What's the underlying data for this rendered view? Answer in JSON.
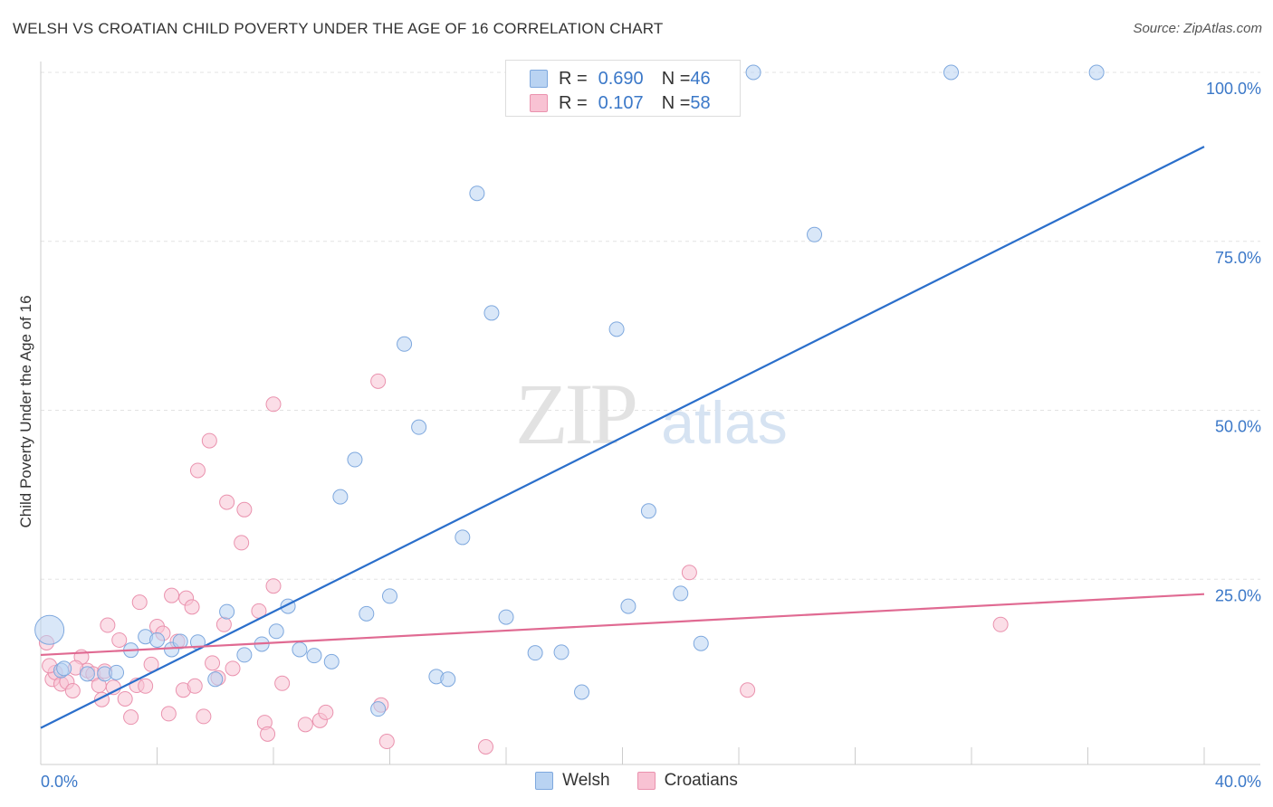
{
  "title": "WELSH VS CROATIAN CHILD POVERTY UNDER THE AGE OF 16 CORRELATION CHART",
  "source": "Source: ZipAtlas.com",
  "watermark": {
    "zip": "ZIP",
    "atlas": "atlas"
  },
  "legend": {
    "welsh": {
      "r_key": "R = ",
      "r_value": "0.690",
      "n_key": "N = ",
      "n_value": "46"
    },
    "croatians": {
      "r_key": "R = ",
      "r_value": "0.107",
      "n_key": "N = ",
      "n_value": "58"
    }
  },
  "bottom_legend": {
    "welsh": "Welsh",
    "croatians": "Croatians"
  },
  "chart_data": {
    "type": "scatter",
    "xlabel": "",
    "ylabel": "Child Poverty Under the Age of 16",
    "xlim": [
      0,
      40
    ],
    "ylim": [
      0,
      100
    ],
    "x_tick_labels": {
      "left": "0.0%",
      "right": "40.0%"
    },
    "y_ticks": [
      25,
      50,
      75,
      100
    ],
    "y_tick_labels": [
      "25.0%",
      "50.0%",
      "75.0%",
      "100.0%"
    ],
    "grid": true,
    "colors": {
      "welsh_fill": "#b9d3f2",
      "welsh_stroke": "#7ea8de",
      "welsh_line": "#2b6fcb",
      "croatians_fill": "#f8c2d3",
      "croatians_stroke": "#ea92ae",
      "croatians_line": "#e06a92",
      "tick_label": "#3b78c8"
    },
    "series": [
      {
        "name": "Welsh",
        "points": [
          [
            0.3,
            17.5,
            2
          ],
          [
            0.7,
            11.5,
            1
          ],
          [
            1.6,
            11.0,
            1
          ],
          [
            2.2,
            11.0,
            1
          ],
          [
            2.6,
            11.2,
            1
          ],
          [
            3.1,
            14.5,
            1
          ],
          [
            3.6,
            16.5,
            1
          ],
          [
            4.0,
            16.0,
            1
          ],
          [
            4.5,
            14.6,
            1
          ],
          [
            4.8,
            15.8,
            1
          ],
          [
            5.4,
            15.7,
            1
          ],
          [
            6.0,
            10.2,
            1
          ],
          [
            6.4,
            20.2,
            1
          ],
          [
            7.0,
            13.8,
            1
          ],
          [
            7.6,
            15.4,
            1
          ],
          [
            8.1,
            17.3,
            1
          ],
          [
            8.5,
            21.0,
            1
          ],
          [
            8.9,
            14.6,
            1
          ],
          [
            9.4,
            13.7,
            1
          ],
          [
            10.0,
            12.8,
            1
          ],
          [
            10.3,
            37.2,
            1
          ],
          [
            10.8,
            42.7,
            1
          ],
          [
            11.2,
            19.9,
            1
          ],
          [
            11.6,
            5.8,
            1
          ],
          [
            12.0,
            22.5,
            1
          ],
          [
            12.5,
            59.8,
            1
          ],
          [
            13.0,
            47.5,
            1
          ],
          [
            13.6,
            10.6,
            1
          ],
          [
            14.0,
            10.2,
            1
          ],
          [
            14.5,
            31.2,
            1
          ],
          [
            15.0,
            82.1,
            1
          ],
          [
            15.5,
            64.4,
            1
          ],
          [
            16.0,
            19.4,
            1
          ],
          [
            17.0,
            14.1,
            1
          ],
          [
            17.9,
            14.2,
            1
          ],
          [
            18.6,
            8.3,
            1
          ],
          [
            19.8,
            62.0,
            1
          ],
          [
            20.2,
            21.0,
            1
          ],
          [
            20.9,
            35.1,
            1
          ],
          [
            22.0,
            22.9,
            1
          ],
          [
            22.7,
            15.5,
            1
          ],
          [
            24.5,
            100.0,
            1
          ],
          [
            26.6,
            76.0,
            1
          ],
          [
            31.3,
            100.0,
            1
          ],
          [
            36.3,
            100.0,
            1
          ],
          [
            0.8,
            11.8,
            1
          ]
        ]
      },
      {
        "name": "Croatians",
        "points": [
          [
            0.2,
            15.6,
            1
          ],
          [
            0.4,
            10.2,
            1
          ],
          [
            0.5,
            11.2,
            1
          ],
          [
            0.7,
            9.5,
            1
          ],
          [
            0.9,
            9.8,
            1
          ],
          [
            1.1,
            8.5,
            1
          ],
          [
            1.4,
            13.5,
            1
          ],
          [
            1.6,
            11.5,
            1
          ],
          [
            1.8,
            11.0,
            1
          ],
          [
            2.0,
            9.3,
            1
          ],
          [
            2.1,
            7.2,
            1
          ],
          [
            2.3,
            18.2,
            1
          ],
          [
            2.5,
            9.0,
            1
          ],
          [
            2.7,
            16.0,
            1
          ],
          [
            2.9,
            7.3,
            1
          ],
          [
            3.1,
            4.6,
            1
          ],
          [
            3.3,
            9.3,
            1
          ],
          [
            3.4,
            21.6,
            1
          ],
          [
            3.6,
            9.2,
            1
          ],
          [
            3.8,
            12.4,
            1
          ],
          [
            4.0,
            18.0,
            1
          ],
          [
            4.2,
            17.0,
            1
          ],
          [
            4.4,
            5.1,
            1
          ],
          [
            4.5,
            22.6,
            1
          ],
          [
            4.7,
            15.8,
            1
          ],
          [
            4.9,
            8.6,
            1
          ],
          [
            5.0,
            22.2,
            1
          ],
          [
            5.2,
            20.9,
            1
          ],
          [
            5.3,
            9.2,
            1
          ],
          [
            5.4,
            41.1,
            1
          ],
          [
            5.6,
            4.7,
            1
          ],
          [
            5.8,
            45.5,
            1
          ],
          [
            5.9,
            12.6,
            1
          ],
          [
            6.1,
            10.4,
            1
          ],
          [
            6.3,
            18.3,
            1
          ],
          [
            6.4,
            36.4,
            1
          ],
          [
            6.6,
            11.8,
            1
          ],
          [
            6.9,
            30.4,
            1
          ],
          [
            7.0,
            35.3,
            1
          ],
          [
            7.5,
            20.3,
            1
          ],
          [
            7.7,
            3.8,
            1
          ],
          [
            7.8,
            2.1,
            1
          ],
          [
            8.0,
            50.9,
            1
          ],
          [
            8.0,
            24.0,
            1
          ],
          [
            8.3,
            9.6,
            1
          ],
          [
            9.1,
            3.5,
            1
          ],
          [
            9.6,
            4.1,
            1
          ],
          [
            9.8,
            5.3,
            1
          ],
          [
            11.6,
            54.3,
            1
          ],
          [
            11.7,
            6.4,
            1
          ],
          [
            11.9,
            1.0,
            1
          ],
          [
            15.3,
            0.2,
            1
          ],
          [
            22.3,
            26.0,
            1
          ],
          [
            24.3,
            8.6,
            1
          ],
          [
            33.0,
            18.3,
            1
          ],
          [
            1.2,
            11.9,
            1
          ],
          [
            0.3,
            12.2,
            1
          ],
          [
            2.2,
            11.4,
            1
          ]
        ]
      }
    ],
    "trend_lines": [
      {
        "series": "Welsh",
        "x": [
          0,
          40
        ],
        "y": [
          3.0,
          89.0
        ]
      },
      {
        "series": "Croatians",
        "x": [
          0,
          40
        ],
        "y": [
          13.8,
          22.8
        ]
      }
    ]
  }
}
